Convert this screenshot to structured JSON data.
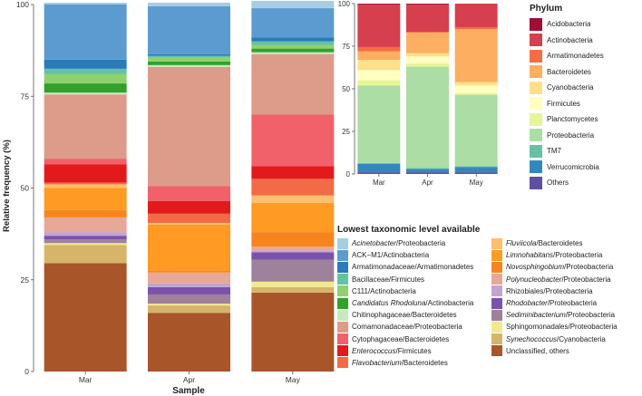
{
  "left_chart": {
    "ylabel": "Relative frequency (%)",
    "xlabel": "Sample"
  },
  "phylum_legend": {
    "title": "Phylum",
    "items": [
      {
        "label": "Acidobacteria",
        "color": "#9e0e35"
      },
      {
        "label": "Actinobacteria",
        "color": "#d6404e"
      },
      {
        "label": "Armatimonadetes",
        "color": "#f46d43"
      },
      {
        "label": "Bacteroidetes",
        "color": "#fdae61"
      },
      {
        "label": "Cyanobacteria",
        "color": "#fee08b"
      },
      {
        "label": "Firmicutes",
        "color": "#ffffbf"
      },
      {
        "label": "Planctomycetes",
        "color": "#e6f598"
      },
      {
        "label": "Proteobacteria",
        "color": "#abdda4"
      },
      {
        "label": "TM7",
        "color": "#66c2a5"
      },
      {
        "label": "Verrucomicrobia",
        "color": "#3288bd"
      },
      {
        "label": "Others",
        "color": "#5e4fa2"
      }
    ]
  },
  "taxon_legend": {
    "title": "Lowest taxonomic level available",
    "col1": [
      {
        "a": "Acinetobacter",
        "b": "/Proteobacteria",
        "italic": true,
        "color": "#a6cee3"
      },
      {
        "a": "ACK−M1",
        "b": "/Actinobacteria",
        "italic": false,
        "color": "#5b9bd0"
      },
      {
        "a": "Armatimonadaceae",
        "b": "/Armatimonadetes",
        "italic": false,
        "color": "#2b7bb9"
      },
      {
        "a": "Bacillaceae",
        "b": "/Firmicutes",
        "italic": false,
        "color": "#66c2a5"
      },
      {
        "a": "C111",
        "b": "/Actinobacteria",
        "italic": false,
        "color": "#8fd16f"
      },
      {
        "a": "Candidatus Rhodoluna",
        "b": "/Actinobacteria",
        "italic": true,
        "color": "#33a02c"
      },
      {
        "a": "Chitinophagaceae",
        "b": "/Bacteroidetes",
        "italic": false,
        "color": "#c7e9c0"
      },
      {
        "a": "Comamonadaceae",
        "b": "/Proteobacteria",
        "italic": false,
        "color": "#dd9b8a"
      },
      {
        "a": "Cytophagaceae",
        "b": "/Bacteroidetes",
        "italic": false,
        "color": "#f0616a"
      },
      {
        "a": "Enterococcus",
        "b": "/Firmicutes",
        "italic": true,
        "color": "#e31a1c"
      },
      {
        "a": "Flavobacterium",
        "b": "/Bacteroidetes",
        "italic": true,
        "color": "#f26b47"
      }
    ],
    "col2": [
      {
        "a": "Fluviicola",
        "b": "/Bacteroidetes",
        "italic": true,
        "color": "#fdbf6f"
      },
      {
        "a": "Limnohabitans",
        "b": "/Proteobacteria",
        "italic": true,
        "color": "#ff9a22"
      },
      {
        "a": "Novosphingobium",
        "b": "/Proteobacteria",
        "italic": true,
        "color": "#f7851e"
      },
      {
        "a": "Polynucleobacter",
        "b": "/Proteobacteria",
        "italic": true,
        "color": "#e8a898"
      },
      {
        "a": "Rhizobiales",
        "b": "/Proteobacteria",
        "italic": false,
        "color": "#c2a5cf"
      },
      {
        "a": "Rhodobacter",
        "b": "/Proteobacteria",
        "italic": true,
        "color": "#7b52ab"
      },
      {
        "a": "Sediminibacterium",
        "b": "/Proteobacteria",
        "italic": true,
        "color": "#9e819a"
      },
      {
        "a": "Sphingomonadales",
        "b": "/Proteobacteria",
        "italic": false,
        "color": "#f2e88f"
      },
      {
        "a": "Synechococcus",
        "b": "/Cyanobacteria",
        "italic": true,
        "color": "#d6b56a"
      },
      {
        "a": "Unclassified, others",
        "b": "",
        "italic": false,
        "color": "#a8552a"
      }
    ]
  },
  "chart_data": [
    {
      "type": "bar",
      "stacked": true,
      "xlabel": "Sample",
      "ylabel": "Relative frequency (%)",
      "categories": [
        "Mar",
        "Apr",
        "May"
      ],
      "ylim": [
        0,
        100
      ],
      "yticks": [
        0,
        25,
        50,
        75,
        100
      ],
      "series": [
        {
          "name": "Unclassified, others",
          "color": "#a8552a",
          "values": [
            29.5,
            16,
            21.5
          ]
        },
        {
          "name": "Synechococcus/Cyanobacteria",
          "color": "#d6b56a",
          "values": [
            5,
            2,
            1.5
          ]
        },
        {
          "name": "Sphingomonadales/Proteobacteria",
          "color": "#f2e88f",
          "values": [
            0.5,
            0.5,
            1.5
          ]
        },
        {
          "name": "Sediminibacterium/Proteobacteria",
          "color": "#9e819a",
          "values": [
            1,
            2.5,
            6
          ]
        },
        {
          "name": "Rhodobacter/Proteobacteria",
          "color": "#7b52ab",
          "values": [
            1,
            2,
            2
          ]
        },
        {
          "name": "Rhizobiales/Proteobacteria",
          "color": "#c2a5cf",
          "values": [
            1,
            1,
            0.5
          ]
        },
        {
          "name": "Polynucleobacter/Proteobacteria",
          "color": "#e8a898",
          "values": [
            4,
            3,
            1
          ]
        },
        {
          "name": "Novosphingobium/Proteobacteria",
          "color": "#f7851e",
          "values": [
            2,
            0.5,
            4
          ]
        },
        {
          "name": "Limnohabitans/Proteobacteria",
          "color": "#ff9a22",
          "values": [
            6,
            12.5,
            8
          ]
        },
        {
          "name": "Fluviicola/Bacteroidetes",
          "color": "#fdbf6f",
          "values": [
            1,
            0.5,
            2
          ]
        },
        {
          "name": "Flavobacterium/Bacteroidetes",
          "color": "#f26b47",
          "values": [
            0.5,
            2.5,
            4.5
          ]
        },
        {
          "name": "Enterococcus/Firmicutes",
          "color": "#e31a1c",
          "values": [
            5,
            3.5,
            3.5
          ]
        },
        {
          "name": "Cytophagaceae/Bacteroidetes",
          "color": "#f0616a",
          "values": [
            1.5,
            4,
            14
          ]
        },
        {
          "name": "Comamonadaceae/Proteobacteria",
          "color": "#dd9b8a",
          "values": [
            17.5,
            32.5,
            16.5
          ]
        },
        {
          "name": "Chitinophagaceae/Bacteroidetes",
          "color": "#c7e9c0",
          "values": [
            0.5,
            0.5,
            0.5
          ]
        },
        {
          "name": "Candidatus Rhodoluna/Actinobacteria",
          "color": "#33a02c",
          "values": [
            2.5,
            1,
            1
          ]
        },
        {
          "name": "C111/Actinobacteria",
          "color": "#8fd16f",
          "values": [
            2.5,
            1,
            1
          ]
        },
        {
          "name": "Bacillaceae/Firmicutes",
          "color": "#66c2a5",
          "values": [
            1.5,
            0.5,
            1
          ]
        },
        {
          "name": "Armatimonadaceae/Armatimonadetes",
          "color": "#2b7bb9",
          "values": [
            2.5,
            0.5,
            1
          ]
        },
        {
          "name": "ACK−M1/Actinobacteria",
          "color": "#5b9bd0",
          "values": [
            15,
            13,
            8
          ]
        },
        {
          "name": "Acinetobacter/Proteobacteria",
          "color": "#a6cee3",
          "values": [
            0.5,
            1,
            2
          ]
        }
      ]
    },
    {
      "type": "bar",
      "stacked": true,
      "categories": [
        "Mar",
        "Apr",
        "May"
      ],
      "ylim": [
        0,
        100
      ],
      "yticks": [
        0,
        25,
        50,
        75,
        100
      ],
      "series": [
        {
          "name": "Others",
          "color": "#5e4fa2",
          "values": [
            1,
            1,
            1
          ]
        },
        {
          "name": "Verrucomicrobia",
          "color": "#3288bd",
          "values": [
            5,
            2,
            3
          ]
        },
        {
          "name": "TM7",
          "color": "#66c2a5",
          "values": [
            0.5,
            0.5,
            0.5
          ]
        },
        {
          "name": "Proteobacteria",
          "color": "#abdda4",
          "values": [
            45.5,
            59.5,
            42
          ]
        },
        {
          "name": "Planctomycetes",
          "color": "#e6f598",
          "values": [
            3,
            2,
            1
          ]
        },
        {
          "name": "Firmicutes",
          "color": "#ffffbf",
          "values": [
            6,
            4,
            4.5
          ]
        },
        {
          "name": "Cyanobacteria",
          "color": "#fee08b",
          "values": [
            6,
            2,
            2
          ]
        },
        {
          "name": "Bacteroidetes",
          "color": "#fdae61",
          "values": [
            5,
            12,
            31
          ]
        },
        {
          "name": "Armatimonadetes",
          "color": "#f46d43",
          "values": [
            2.5,
            0.5,
            1
          ]
        },
        {
          "name": "Actinobacteria",
          "color": "#d6404e",
          "values": [
            25,
            16,
            14
          ]
        },
        {
          "name": "Acidobacteria",
          "color": "#9e0e35",
          "values": [
            0.5,
            0.5,
            0
          ]
        }
      ]
    }
  ]
}
